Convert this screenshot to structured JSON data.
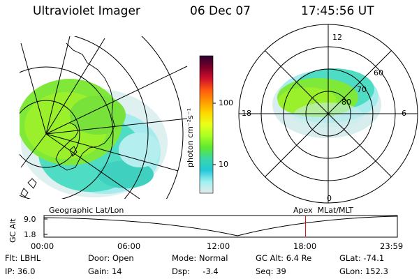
{
  "header": {
    "title": "Ultraviolet Imager",
    "date": "06 Dec 07",
    "time": "17:45:56 UT"
  },
  "colorbar": {
    "label": "photon cm⁻²s⁻¹",
    "ticks": [
      "100",
      "10"
    ],
    "scale": "log",
    "colors": [
      "#2a0030",
      "#7a0028",
      "#d0102a",
      "#ff5a10",
      "#ff9a00",
      "#ffd800",
      "#e8ff1a",
      "#aaff22",
      "#5ee830",
      "#38d8a8",
      "#24c8d8",
      "#a0f0f0",
      "#e6ecec"
    ]
  },
  "left_panel": {
    "label": "Geographic Lat/Lon"
  },
  "right_panel": {
    "label": "Apex  MLat/MLT",
    "mlt_labels": [
      "12",
      "18",
      "6",
      "0"
    ],
    "mlat_labels": [
      "60",
      "70",
      "80"
    ]
  },
  "altitude_plot": {
    "ylabel": "GC Alt",
    "yticks": [
      "9.0",
      "1.8"
    ],
    "xticks": [
      "00:00",
      "06:00",
      "12:00",
      "18:00",
      "23:59"
    ],
    "current_time_marker": "17:45:56",
    "marker_color": "#d00000"
  },
  "footer": {
    "row1": {
      "filter": "Flt: LBHL",
      "door": "Door: Open",
      "mode": "Mode: Normal",
      "gc_alt": "GC Alt: 6.4 Re",
      "glat": "GLat: -74.1"
    },
    "row2": {
      "ip": "IP: 36.0",
      "gain": "Gain: 14",
      "dsp": "Dsp:     -3.4",
      "seq": "Seq: 39",
      "glon": "GLon: 152.3"
    }
  }
}
